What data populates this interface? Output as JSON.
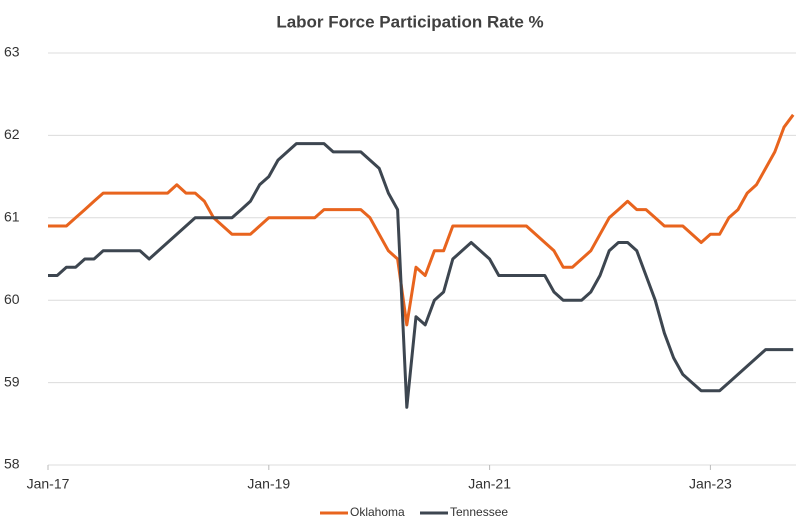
{
  "chart_data": {
    "type": "line",
    "title": "Labor Force Participation Rate  %",
    "categories": [
      "Jan-17",
      null,
      null,
      null,
      null,
      null,
      null,
      null,
      null,
      null,
      null,
      null,
      null,
      null,
      null,
      null,
      null,
      null,
      null,
      null,
      null,
      null,
      null,
      null,
      "Jan-19",
      null,
      null,
      null,
      null,
      null,
      null,
      null,
      null,
      null,
      null,
      null,
      null,
      null,
      null,
      null,
      null,
      null,
      null,
      null,
      null,
      null,
      null,
      null,
      "Jan-21",
      null,
      null,
      null,
      null,
      null,
      null,
      null,
      null,
      null,
      null,
      null,
      null,
      null,
      null,
      null,
      null,
      null,
      null,
      null,
      null,
      null,
      null,
      null,
      "Jan-23",
      null,
      null,
      null,
      null,
      null,
      null,
      null,
      null,
      null
    ],
    "series": [
      {
        "name": "Oklahoma",
        "color": "#e8641e",
        "values": [
          60.9,
          60.9,
          60.9,
          61.0,
          61.1,
          61.2,
          61.3,
          61.3,
          61.3,
          61.3,
          61.3,
          61.3,
          61.3,
          61.3,
          61.4,
          61.3,
          61.3,
          61.2,
          61.0,
          60.9,
          60.8,
          60.8,
          60.8,
          60.9,
          61.0,
          61.0,
          61.0,
          61.0,
          61.0,
          61.0,
          61.1,
          61.1,
          61.1,
          61.1,
          61.1,
          61.0,
          60.8,
          60.6,
          60.5,
          59.7,
          60.4,
          60.3,
          60.6,
          60.6,
          60.9,
          60.9,
          60.9,
          60.9,
          60.9,
          60.9,
          60.9,
          60.9,
          60.9,
          60.8,
          60.7,
          60.6,
          60.4,
          60.4,
          60.5,
          60.6,
          60.8,
          61.0,
          61.1,
          61.2,
          61.1,
          61.1,
          61.0,
          60.9,
          60.9,
          60.9,
          60.8,
          60.7,
          60.8,
          60.8,
          61.0,
          61.1,
          61.3,
          61.4,
          61.6,
          61.8,
          62.1,
          62.25
        ]
      },
      {
        "name": "Tennessee",
        "color": "#3d4650",
        "values": [
          60.3,
          60.3,
          60.4,
          60.4,
          60.5,
          60.5,
          60.6,
          60.6,
          60.6,
          60.6,
          60.6,
          60.5,
          60.6,
          60.7,
          60.8,
          60.9,
          61.0,
          61.0,
          61.0,
          61.0,
          61.0,
          61.1,
          61.2,
          61.4,
          61.5,
          61.7,
          61.8,
          61.9,
          61.9,
          61.9,
          61.9,
          61.8,
          61.8,
          61.8,
          61.8,
          61.7,
          61.6,
          61.3,
          61.1,
          58.7,
          59.8,
          59.7,
          60.0,
          60.1,
          60.5,
          60.6,
          60.7,
          60.6,
          60.5,
          60.3,
          60.3,
          60.3,
          60.3,
          60.3,
          60.3,
          60.1,
          60.0,
          60.0,
          60.0,
          60.1,
          60.3,
          60.6,
          60.7,
          60.7,
          60.6,
          60.3,
          60.0,
          59.6,
          59.3,
          59.1,
          59.0,
          58.9,
          58.9,
          58.9,
          59.0,
          59.1,
          59.2,
          59.3,
          59.4,
          59.4,
          59.4,
          59.4
        ]
      }
    ],
    "ylim": [
      58,
      63
    ],
    "yticks": [
      58,
      59,
      60,
      61,
      62,
      63
    ],
    "grid": true,
    "legend": "bottom"
  }
}
